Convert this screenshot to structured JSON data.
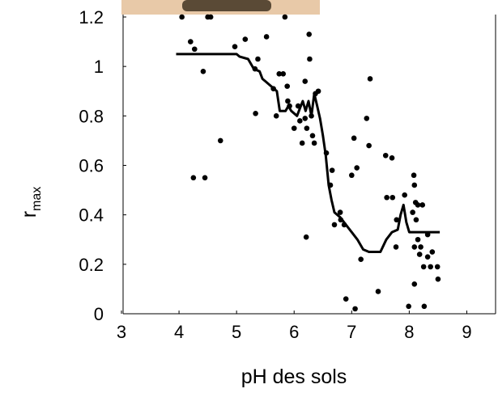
{
  "chart_data": {
    "type": "scatter",
    "xlabel": "pH des sols",
    "ylabel": "r",
    "ylabel_subscript": "max",
    "xlim": [
      3,
      9.5
    ],
    "xticks": [
      3,
      4,
      5,
      6,
      7,
      8,
      9
    ],
    "ylim": [
      0,
      1.2
    ],
    "yticks": [
      0,
      0.2,
      0.4,
      0.6,
      0.8,
      1,
      1.2
    ],
    "series": [
      {
        "kind": "points",
        "color": "#000000",
        "x": [
          4.2,
          4.27,
          4.42,
          4.25,
          4.45,
          4.72,
          4.05,
          4.5,
          4.55,
          4.97,
          5.15,
          5.52,
          5.37,
          5.32,
          5.33,
          5.64,
          5.74,
          5.81,
          5.84,
          5.69,
          5.88,
          5.89,
          5.92,
          6.0,
          6.07,
          6.1,
          6.14,
          6.19,
          6.19,
          6.22,
          6.26,
          6.27,
          6.3,
          6.32,
          6.35,
          6.21,
          6.37,
          6.42,
          6.56,
          6.66,
          6.63,
          6.7,
          6.8,
          6.81,
          6.87,
          6.9,
          7.04,
          7.0,
          7.09,
          7.16,
          7.06,
          7.26,
          7.32,
          7.3,
          7.46,
          7.59,
          7.7,
          7.61,
          7.71,
          7.78,
          7.77,
          7.92,
          7.99,
          8.08,
          8.09,
          8.11,
          8.15,
          8.06,
          8.12,
          8.09,
          8.15,
          8.18,
          8.09,
          8.23,
          8.2,
          8.25,
          8.26,
          8.32,
          8.4,
          8.37,
          8.49,
          8.5,
          8.32
        ],
        "values": [
          1.1,
          1.07,
          0.98,
          0.55,
          0.55,
          0.7,
          1.2,
          1.2,
          1.2,
          1.08,
          1.11,
          1.12,
          1.03,
          0.99,
          0.81,
          0.91,
          0.97,
          0.97,
          1.2,
          0.8,
          0.92,
          0.86,
          0.84,
          0.75,
          0.84,
          0.78,
          0.69,
          0.94,
          0.79,
          0.75,
          1.13,
          1.03,
          0.8,
          0.72,
          0.69,
          0.31,
          0.89,
          0.9,
          0.65,
          0.58,
          0.52,
          0.36,
          0.41,
          0.38,
          0.36,
          0.06,
          0.71,
          0.56,
          0.59,
          0.22,
          0.02,
          0.79,
          0.95,
          0.68,
          0.09,
          0.64,
          0.63,
          0.47,
          0.47,
          0.38,
          0.27,
          0.48,
          0.03,
          0.56,
          0.52,
          0.45,
          0.44,
          0.41,
          0.38,
          0.27,
          0.3,
          0.24,
          0.12,
          0.44,
          0.27,
          0.19,
          0.03,
          0.23,
          0.25,
          0.19,
          0.19,
          0.14,
          0.32
        ]
      },
      {
        "kind": "line",
        "color": "#000000",
        "x": [
          3.95,
          5.0,
          5.05,
          5.2,
          5.3,
          5.4,
          5.45,
          5.5,
          5.6,
          5.7,
          5.75,
          5.85,
          5.9,
          5.95,
          6.05,
          6.1,
          6.15,
          6.2,
          6.25,
          6.3,
          6.35,
          6.4,
          6.45,
          6.5,
          6.55,
          6.6,
          6.65,
          6.7,
          6.8,
          6.9,
          7.0,
          7.1,
          7.2,
          7.3,
          7.5,
          7.6,
          7.7,
          7.8,
          7.85,
          7.9,
          7.95,
          8.0,
          8.1,
          8.53
        ],
        "values": [
          1.05,
          1.05,
          1.04,
          1.03,
          0.99,
          0.98,
          0.95,
          0.94,
          0.92,
          0.9,
          0.82,
          0.82,
          0.84,
          0.82,
          0.8,
          0.83,
          0.86,
          0.82,
          0.86,
          0.8,
          0.89,
          0.84,
          0.79,
          0.72,
          0.64,
          0.52,
          0.46,
          0.41,
          0.39,
          0.36,
          0.33,
          0.3,
          0.26,
          0.25,
          0.25,
          0.3,
          0.33,
          0.34,
          0.4,
          0.44,
          0.37,
          0.33,
          0.33,
          0.33
        ]
      }
    ]
  }
}
